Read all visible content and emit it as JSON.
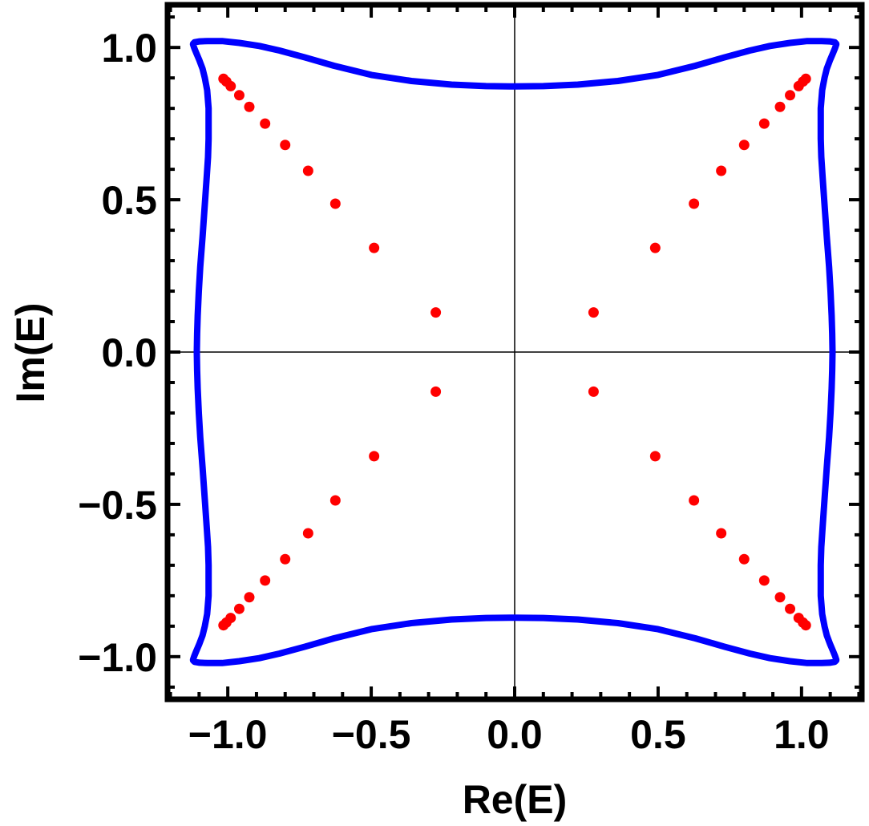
{
  "chart_data": {
    "type": "scatter",
    "xlabel": "Re(E)",
    "ylabel": "Im(E)",
    "xlim": [
      -1.21,
      1.21
    ],
    "ylim": [
      -1.14,
      1.14
    ],
    "x_ticks": [
      -1.0,
      -0.5,
      0.0,
      0.5,
      1.0
    ],
    "x_tick_labels": [
      "−1.0",
      "−0.5",
      "0.0",
      "0.5",
      "1.0"
    ],
    "y_ticks": [
      -1.0,
      -0.5,
      0.0,
      0.5,
      1.0
    ],
    "y_tick_labels": [
      "−1.0",
      "−0.5",
      "0.0",
      "0.5",
      "1.0"
    ],
    "grid": false,
    "origin_axes": true,
    "series": [
      {
        "kind": "curve",
        "color": "#0000ff",
        "x": [
          1.108,
          1.107,
          1.105,
          1.101,
          1.096,
          1.088,
          1.079,
          1.073,
          1.069,
          1.067,
          1.067,
          1.067,
          1.072,
          1.08,
          1.088,
          1.1,
          1.11,
          1.117,
          1.121,
          1.121,
          1.116,
          1.098,
          1.07,
          1.02,
          0.96,
          0.89,
          0.82,
          0.73,
          0.63,
          0.5,
          0.36,
          0.22,
          0.1,
          0.0,
          -0.1,
          -0.22,
          -0.36,
          -0.5,
          -0.63,
          -0.73,
          -0.82,
          -0.89,
          -0.96,
          -1.02,
          -1.07,
          -1.098,
          -1.116,
          -1.121,
          -1.121,
          -1.117,
          -1.11,
          -1.1,
          -1.088,
          -1.08,
          -1.072,
          -1.067,
          -1.067,
          -1.067,
          -1.069,
          -1.073,
          -1.079,
          -1.088,
          -1.096,
          -1.101,
          -1.105,
          -1.107,
          -1.108,
          -1.107,
          -1.105,
          -1.101,
          -1.096,
          -1.088,
          -1.079,
          -1.073,
          -1.069,
          -1.067,
          -1.067,
          -1.067,
          -1.072,
          -1.08,
          -1.088,
          -1.1,
          -1.11,
          -1.117,
          -1.121,
          -1.121,
          -1.116,
          -1.098,
          -1.07,
          -1.02,
          -0.96,
          -0.89,
          -0.82,
          -0.73,
          -0.63,
          -0.5,
          -0.36,
          -0.22,
          -0.1,
          0.0,
          0.1,
          0.22,
          0.36,
          0.5,
          0.63,
          0.73,
          0.82,
          0.89,
          0.96,
          1.02,
          1.07,
          1.098,
          1.116,
          1.121,
          1.121,
          1.117,
          1.11,
          1.1,
          1.088,
          1.08,
          1.072,
          1.067,
          1.067,
          1.067,
          1.069,
          1.073,
          1.079,
          1.088,
          1.096,
          1.101,
          1.105,
          1.107,
          1.108
        ],
        "y": [
          0.0,
          0.06,
          0.12,
          0.2,
          0.28,
          0.38,
          0.5,
          0.58,
          0.64,
          0.7,
          0.75,
          0.8,
          0.86,
          0.9,
          0.93,
          0.96,
          0.982,
          0.998,
          1.01,
          1.012,
          1.017,
          1.02,
          1.021,
          1.021,
          1.015,
          1.005,
          0.99,
          0.967,
          0.94,
          0.91,
          0.89,
          0.878,
          0.873,
          0.872,
          0.873,
          0.878,
          0.89,
          0.91,
          0.94,
          0.967,
          0.99,
          1.005,
          1.015,
          1.021,
          1.021,
          1.02,
          1.017,
          1.012,
          1.01,
          0.998,
          0.982,
          0.96,
          0.93,
          0.9,
          0.86,
          0.8,
          0.75,
          0.7,
          0.64,
          0.58,
          0.5,
          0.38,
          0.28,
          0.2,
          0.12,
          0.06,
          0.0,
          -0.06,
          -0.12,
          -0.2,
          -0.28,
          -0.38,
          -0.5,
          -0.58,
          -0.64,
          -0.7,
          -0.75,
          -0.8,
          -0.86,
          -0.9,
          -0.93,
          -0.96,
          -0.982,
          -0.998,
          -1.01,
          -1.012,
          -1.017,
          -1.02,
          -1.021,
          -1.021,
          -1.015,
          -1.005,
          -0.99,
          -0.967,
          -0.94,
          -0.91,
          -0.89,
          -0.878,
          -0.873,
          -0.872,
          -0.873,
          -0.878,
          -0.89,
          -0.91,
          -0.94,
          -0.967,
          -0.99,
          -1.005,
          -1.015,
          -1.021,
          -1.021,
          -1.02,
          -1.017,
          -1.012,
          -1.01,
          -0.998,
          -0.982,
          -0.96,
          -0.93,
          -0.9,
          -0.86,
          -0.8,
          -0.75,
          -0.7,
          -0.64,
          -0.58,
          -0.5,
          -0.38,
          -0.28,
          -0.2,
          -0.12,
          -0.06,
          0.0
        ]
      },
      {
        "kind": "points",
        "color": "#ff0000",
        "x": [
          0.275,
          0.49,
          0.625,
          0.72,
          0.8,
          0.87,
          0.925,
          0.96,
          0.99,
          1.005,
          1.015,
          -0.275,
          -0.49,
          -0.625,
          -0.72,
          -0.8,
          -0.87,
          -0.925,
          -0.96,
          -0.99,
          -1.005,
          -1.015,
          0.275,
          0.49,
          0.625,
          0.72,
          0.8,
          0.87,
          0.925,
          0.96,
          0.99,
          1.005,
          1.015,
          -0.275,
          -0.49,
          -0.625,
          -0.72,
          -0.8,
          -0.87,
          -0.925,
          -0.96,
          -0.99,
          -1.005,
          -1.015
        ],
        "y": [
          0.13,
          0.342,
          0.487,
          0.595,
          0.68,
          0.75,
          0.805,
          0.843,
          0.873,
          0.888,
          0.897,
          0.13,
          0.342,
          0.487,
          0.595,
          0.68,
          0.75,
          0.805,
          0.843,
          0.873,
          0.888,
          0.897,
          -0.13,
          -0.342,
          -0.487,
          -0.595,
          -0.68,
          -0.75,
          -0.805,
          -0.843,
          -0.873,
          -0.888,
          -0.897,
          -0.13,
          -0.342,
          -0.487,
          -0.595,
          -0.68,
          -0.75,
          -0.805,
          -0.843,
          -0.873,
          -0.888,
          -0.897
        ]
      }
    ]
  }
}
